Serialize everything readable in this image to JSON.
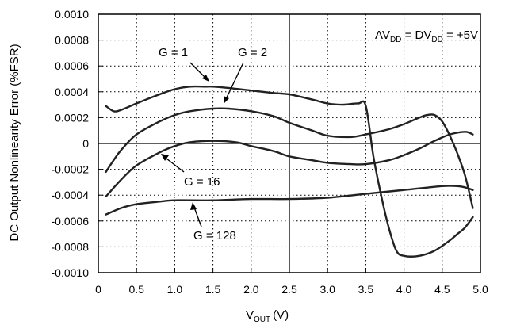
{
  "chart_data": {
    "type": "line",
    "title": "",
    "xlabel": "V",
    "xlabel_sub": "OUT",
    "xlabel_unit": "(V)",
    "ylabel": "DC Output Nonlinearity Error (%FSR)",
    "xlim": [
      0,
      5
    ],
    "ylim": [
      -0.001,
      0.001
    ],
    "x_ticks": [
      "0",
      "0.5",
      "1.0",
      "1.5",
      "2.0",
      "2.5",
      "3.0",
      "3.5",
      "4.0",
      "4.5",
      "5.0"
    ],
    "y_ticks": [
      "0.0010",
      "0.0008",
      "0.0006",
      "0.0004",
      "0.0002",
      "0",
      "-0.0002",
      "-0.0004",
      "-0.0006",
      "-0.0008",
      "-0.0010"
    ],
    "grid": "dotted",
    "condition": {
      "p1": "AV",
      "p1_sub": "DD",
      "eq1": " = DV",
      "p2_sub": "DD",
      "eq2": " = +5V"
    },
    "series": [
      {
        "name": "G = 1",
        "x": [
          0.1,
          0.2,
          0.3,
          0.5,
          0.8,
          1.0,
          1.2,
          1.4,
          1.5,
          1.7,
          2.0,
          2.3,
          2.5,
          2.8,
          3.0,
          3.2,
          3.4,
          3.5,
          3.6,
          3.7,
          3.8,
          3.9,
          4.0,
          4.2,
          4.4,
          4.6,
          4.7,
          4.8,
          4.9
        ],
        "y": [
          0.00029,
          0.00025,
          0.00026,
          0.00031,
          0.00038,
          0.00042,
          0.00044,
          0.00044,
          0.00044,
          0.00043,
          0.00041,
          0.00039,
          0.00038,
          0.00034,
          0.00031,
          0.0003,
          0.00031,
          0.00029,
          -0.0001,
          -0.0004,
          -0.00065,
          -0.00083,
          -0.00087,
          -0.00087,
          -0.00083,
          -0.00075,
          -0.0007,
          -0.00065,
          -0.00057
        ]
      },
      {
        "name": "G = 2",
        "x": [
          0.1,
          0.2,
          0.3,
          0.5,
          0.8,
          1.0,
          1.2,
          1.5,
          1.7,
          2.0,
          2.3,
          2.5,
          2.8,
          3.0,
          3.3,
          3.5,
          3.8,
          4.0,
          4.2,
          4.3,
          4.4,
          4.5,
          4.6,
          4.7,
          4.8,
          4.9
        ],
        "y": [
          -0.00022,
          -0.00013,
          -5e-05,
          7e-05,
          0.00017,
          0.00022,
          0.00025,
          0.00027,
          0.00027,
          0.00025,
          0.00021,
          0.00016,
          0.0001,
          6e-05,
          5e-05,
          7e-05,
          0.00011,
          0.00015,
          0.0002,
          0.00022,
          0.00022,
          0.00017,
          6e-05,
          -8e-05,
          -0.00025,
          -0.0005
        ]
      },
      {
        "name": "G = 16",
        "x": [
          0.1,
          0.3,
          0.5,
          0.8,
          1.0,
          1.2,
          1.5,
          1.8,
          2.0,
          2.3,
          2.5,
          2.8,
          3.0,
          3.3,
          3.5,
          3.8,
          4.0,
          4.2,
          4.4,
          4.6,
          4.8,
          4.9
        ],
        "y": [
          -0.00041,
          -0.00028,
          -0.00017,
          -7e-05,
          -2e-05,
          1e-05,
          2e-05,
          1e-05,
          -2e-05,
          -6e-05,
          -0.0001,
          -0.00013,
          -0.00015,
          -0.00016,
          -0.00016,
          -0.00013,
          -9e-05,
          -4e-05,
          2e-05,
          7e-05,
          9e-05,
          7e-05
        ]
      },
      {
        "name": "G = 128",
        "x": [
          0.1,
          0.3,
          0.5,
          0.8,
          1.0,
          1.5,
          2.0,
          2.5,
          3.0,
          3.5,
          4.0,
          4.5,
          4.7,
          4.8,
          4.9
        ],
        "y": [
          -0.00055,
          -0.0005,
          -0.00047,
          -0.00045,
          -0.00044,
          -0.00044,
          -0.00043,
          -0.00043,
          -0.00042,
          -0.00039,
          -0.00036,
          -0.00033,
          -0.00033,
          -0.00034,
          -0.00036
        ]
      }
    ],
    "annotations": [
      {
        "text": "G = 1",
        "series": "G = 1"
      },
      {
        "text": "G = 2",
        "series": "G = 2"
      },
      {
        "text": "G = 16",
        "series": "G = 16"
      },
      {
        "text": "G = 128",
        "series": "G = 128"
      }
    ]
  }
}
